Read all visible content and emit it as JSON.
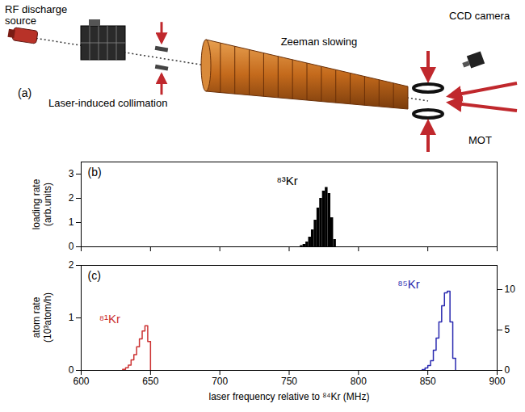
{
  "diagram": {
    "panel": "(a)",
    "labels": {
      "source": "RF discharge source",
      "collimation": "Laser-induced collimation",
      "slower": "Zeeman slowing",
      "camera": "CCD camera",
      "trap": "MOT"
    }
  },
  "chart_data": [
    {
      "type": "histogram",
      "panel": "(b)",
      "ylabel": "loading rate (arb.units)",
      "xlim": [
        600,
        900
      ],
      "xticks": [
        600,
        650,
        700,
        750,
        800,
        850,
        900
      ],
      "ylim": [
        0,
        3.5
      ],
      "yticks": [
        0,
        1,
        2,
        3
      ],
      "tick_labels": "y",
      "series": [
        {
          "name": "⁸³Kr",
          "type": "bar",
          "color": "#000000",
          "bins": [
            758,
            760,
            762,
            764,
            766,
            768,
            770,
            772,
            774,
            776,
            778,
            780,
            782,
            784
          ],
          "values": [
            0.05,
            0.1,
            0.2,
            0.4,
            0.7,
            1.1,
            1.6,
            2.0,
            2.3,
            2.45,
            2.2,
            1.2,
            0.3
          ]
        }
      ]
    },
    {
      "type": "histogram",
      "panel": "(c)",
      "xlabel": "laser frequency relative to ⁸⁴Kr (MHz)",
      "ylabel": "atom rate (10³atom/h)",
      "xlim": [
        600,
        900
      ],
      "xticks": [
        600,
        650,
        700,
        750,
        800,
        850,
        900
      ],
      "ylim": [
        0,
        2
      ],
      "yticks": [
        0,
        1,
        2
      ],
      "y2lim": [
        0,
        13
      ],
      "y2ticks": [
        0,
        5,
        10
      ],
      "series": [
        {
          "name": "⁸¹Kr",
          "type": "line",
          "color": "#cc3333",
          "axis": "y",
          "bins": [
            630,
            632,
            634,
            636,
            638,
            640,
            642,
            644,
            646,
            648,
            650
          ],
          "values": [
            0.02,
            0.05,
            0.1,
            0.2,
            0.3,
            0.45,
            0.6,
            0.75,
            0.85,
            0.55
          ]
        },
        {
          "name": "⁸⁵Kr",
          "type": "line",
          "color": "#2a2ab0",
          "axis": "y2",
          "bins": [
            846,
            848,
            850,
            852,
            854,
            856,
            858,
            860,
            862,
            864,
            866,
            868,
            870
          ],
          "values": [
            0.1,
            0.3,
            0.6,
            1.2,
            2.5,
            4.0,
            6.0,
            8.0,
            9.6,
            9.8,
            6.0,
            1.5
          ]
        }
      ]
    }
  ]
}
